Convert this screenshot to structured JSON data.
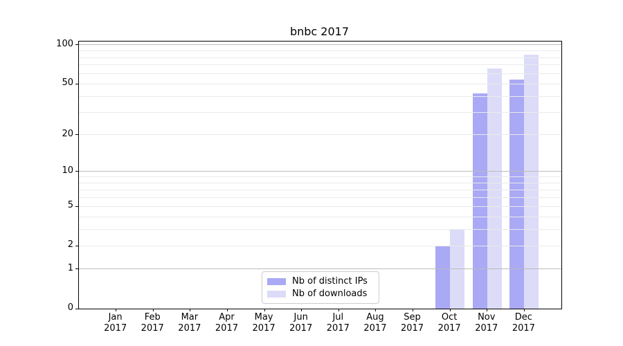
{
  "chart_data": {
    "type": "bar",
    "title": "bnbc 2017",
    "categories": [
      "Jan",
      "Feb",
      "Mar",
      "Apr",
      "May",
      "Jun",
      "Jul",
      "Aug",
      "Sep",
      "Oct",
      "Nov",
      "Dec"
    ],
    "x_year_label": "2017",
    "series": [
      {
        "name": "Nb of distinct IPs",
        "color": "#a9a9f5",
        "values": [
          0,
          0,
          0,
          0,
          0,
          0,
          0,
          0,
          0,
          2,
          42,
          54
        ]
      },
      {
        "name": "Nb of downloads",
        "color": "#dcdcf8",
        "values": [
          0,
          0,
          0,
          0,
          0,
          0,
          0,
          0,
          0,
          3,
          66,
          84
        ]
      }
    ],
    "xlabel": "",
    "ylabel": "",
    "yscale": "log1p",
    "ylim": [
      0,
      105
    ],
    "yticks": [
      0,
      1,
      2,
      5,
      10,
      20,
      50,
      100
    ],
    "major_gridline_values": [
      1,
      10,
      100
    ],
    "minor_gridline_values": [
      2,
      3,
      4,
      5,
      6,
      7,
      8,
      9,
      20,
      30,
      40,
      50,
      60,
      70,
      80,
      90
    ],
    "grid": "on",
    "legend_position": "bottom-center-inside"
  },
  "colors": {
    "background": "#ffffff",
    "spine": "#000000",
    "text": "#000000",
    "major_grid": "#bcbcbc",
    "minor_grid": "#eaeaea",
    "legend_border": "#cccccc",
    "bar_distinct_ips": "#a9a9f5",
    "bar_downloads": "#dcdcf8"
  }
}
